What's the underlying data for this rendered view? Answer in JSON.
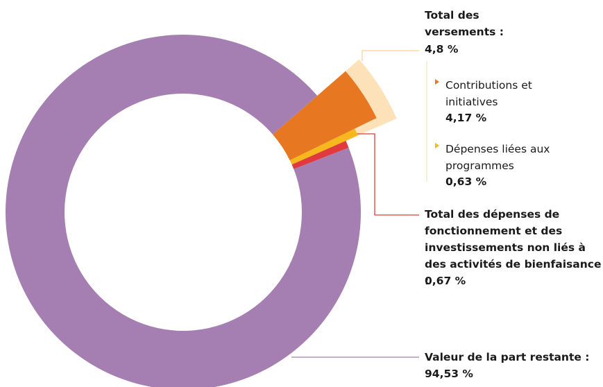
{
  "chart_data": {
    "type": "donut",
    "categories": [
      "Contributions et initiatives",
      "Dépenses liées aux programmes",
      "Total des dépenses de fonctionnement et des investissements non liés à des activités de bienfaisance :",
      "Valeur de la part restante :"
    ],
    "values": [
      4.17,
      0.63,
      0.67,
      94.53
    ],
    "value_labels": [
      "4,17 %",
      "0,63 %",
      "0,67 %",
      "94,53 %"
    ],
    "colors": [
      "#e87722",
      "#f7b81e",
      "#e03a3e",
      "#a57fb1"
    ],
    "group": {
      "name": "Total des versements :",
      "value": 4.8,
      "value_label": "4,8 %",
      "color": "#fde1b8"
    }
  }
}
